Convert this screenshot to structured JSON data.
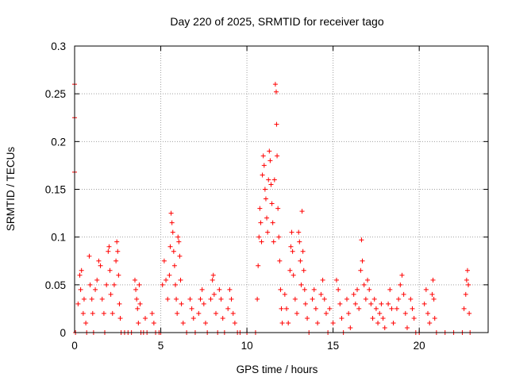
{
  "chart_data": {
    "type": "scatter",
    "title": "Day 220 of 2025, SRMTID for receiver tago",
    "xlabel": "GPS time / hours",
    "ylabel": "SRMTID / TECUs",
    "xlim": [
      0,
      24
    ],
    "ylim": [
      0,
      0.3
    ],
    "grid": true,
    "marker": "+",
    "color": "#ff0000",
    "xticks": [
      0,
      5,
      10,
      15,
      20
    ],
    "xtick_labels": [
      "0",
      "5",
      "10",
      "15",
      "20"
    ],
    "yticks": [
      0,
      0.05,
      0.1,
      0.15,
      0.2,
      0.25,
      0.3
    ],
    "ytick_labels": [
      "0",
      "0.05",
      "0.1",
      "0.15",
      "0.2",
      "0.25",
      "0.3"
    ],
    "series": [
      {
        "name": "SRMTID",
        "points": [
          [
            0.0,
            0.26
          ],
          [
            0.0,
            0.225
          ],
          [
            0.0,
            0.168
          ],
          [
            0.05,
            0.0
          ],
          [
            0.2,
            0.03
          ],
          [
            0.3,
            0.06
          ],
          [
            0.35,
            0.045
          ],
          [
            0.4,
            0.065
          ],
          [
            0.5,
            0.02
          ],
          [
            0.55,
            0.035
          ],
          [
            0.65,
            0.01
          ],
          [
            0.7,
            0.0
          ],
          [
            0.85,
            0.08
          ],
          [
            0.9,
            0.05
          ],
          [
            1.0,
            0.035
          ],
          [
            1.05,
            0.02
          ],
          [
            1.1,
            0.0
          ],
          [
            1.2,
            0.045
          ],
          [
            1.3,
            0.055
          ],
          [
            1.4,
            0.075
          ],
          [
            1.5,
            0.07
          ],
          [
            1.6,
            0.035
          ],
          [
            1.7,
            0.02
          ],
          [
            1.75,
            0.0
          ],
          [
            1.85,
            0.05
          ],
          [
            1.95,
            0.085
          ],
          [
            2.0,
            0.09
          ],
          [
            2.05,
            0.065
          ],
          [
            2.1,
            0.04
          ],
          [
            2.2,
            0.02
          ],
          [
            2.3,
            0.05
          ],
          [
            2.4,
            0.075
          ],
          [
            2.45,
            0.095
          ],
          [
            2.5,
            0.085
          ],
          [
            2.55,
            0.06
          ],
          [
            2.6,
            0.03
          ],
          [
            2.65,
            0.015
          ],
          [
            2.7,
            0.0
          ],
          [
            2.9,
            0.0
          ],
          [
            3.1,
            0.0
          ],
          [
            3.3,
            0.0
          ],
          [
            3.5,
            0.055
          ],
          [
            3.55,
            0.045
          ],
          [
            3.6,
            0.035
          ],
          [
            3.65,
            0.025
          ],
          [
            3.7,
            0.01
          ],
          [
            3.75,
            0.05
          ],
          [
            3.8,
            0.03
          ],
          [
            3.85,
            0.0
          ],
          [
            4.0,
            0.0
          ],
          [
            4.1,
            0.015
          ],
          [
            4.2,
            0.0
          ],
          [
            4.5,
            0.02
          ],
          [
            4.6,
            0.01
          ],
          [
            4.7,
            0.0
          ],
          [
            4.9,
            0.0
          ],
          [
            5.0,
            0.0
          ],
          [
            5.1,
            0.05
          ],
          [
            5.2,
            0.075
          ],
          [
            5.3,
            0.055
          ],
          [
            5.4,
            0.035
          ],
          [
            5.5,
            0.06
          ],
          [
            5.55,
            0.09
          ],
          [
            5.6,
            0.125
          ],
          [
            5.65,
            0.115
          ],
          [
            5.7,
            0.105
          ],
          [
            5.75,
            0.085
          ],
          [
            5.8,
            0.07
          ],
          [
            5.85,
            0.05
          ],
          [
            5.9,
            0.035
          ],
          [
            5.95,
            0.02
          ],
          [
            6.0,
            0.1
          ],
          [
            6.05,
            0.095
          ],
          [
            6.1,
            0.08
          ],
          [
            6.15,
            0.055
          ],
          [
            6.2,
            0.03
          ],
          [
            6.3,
            0.01
          ],
          [
            6.5,
            0.0
          ],
          [
            6.7,
            0.035
          ],
          [
            6.8,
            0.025
          ],
          [
            6.9,
            0.015
          ],
          [
            7.0,
            0.0
          ],
          [
            7.2,
            0.02
          ],
          [
            7.3,
            0.035
          ],
          [
            7.4,
            0.045
          ],
          [
            7.5,
            0.03
          ],
          [
            7.6,
            0.01
          ],
          [
            7.7,
            0.0
          ],
          [
            7.9,
            0.035
          ],
          [
            8.0,
            0.055
          ],
          [
            8.05,
            0.06
          ],
          [
            8.1,
            0.04
          ],
          [
            8.2,
            0.02
          ],
          [
            8.3,
            0.0
          ],
          [
            8.4,
            0.045
          ],
          [
            8.5,
            0.035
          ],
          [
            8.6,
            0.015
          ],
          [
            8.7,
            0.0
          ],
          [
            8.9,
            0.025
          ],
          [
            9.0,
            0.045
          ],
          [
            9.1,
            0.035
          ],
          [
            9.2,
            0.02
          ],
          [
            9.3,
            0.01
          ],
          [
            9.45,
            0.0
          ],
          [
            9.6,
            0.0
          ],
          [
            10.0,
            0.0
          ],
          [
            10.5,
            0.0
          ],
          [
            10.6,
            0.035
          ],
          [
            10.65,
            0.07
          ],
          [
            10.7,
            0.1
          ],
          [
            10.75,
            0.13
          ],
          [
            10.8,
            0.115
          ],
          [
            10.85,
            0.095
          ],
          [
            10.9,
            0.165
          ],
          [
            10.95,
            0.185
          ],
          [
            11.0,
            0.175
          ],
          [
            11.05,
            0.15
          ],
          [
            11.1,
            0.14
          ],
          [
            11.15,
            0.12
          ],
          [
            11.2,
            0.105
          ],
          [
            11.25,
            0.16
          ],
          [
            11.3,
            0.19
          ],
          [
            11.35,
            0.18
          ],
          [
            11.4,
            0.155
          ],
          [
            11.45,
            0.135
          ],
          [
            11.5,
            0.115
          ],
          [
            11.55,
            0.095
          ],
          [
            11.6,
            0.16
          ],
          [
            11.65,
            0.26
          ],
          [
            11.7,
            0.252
          ],
          [
            11.72,
            0.218
          ],
          [
            11.75,
            0.185
          ],
          [
            11.8,
            0.13
          ],
          [
            11.85,
            0.1
          ],
          [
            11.9,
            0.075
          ],
          [
            11.95,
            0.045
          ],
          [
            12.0,
            0.025
          ],
          [
            12.05,
            0.01
          ],
          [
            12.2,
            0.04
          ],
          [
            12.3,
            0.025
          ],
          [
            12.4,
            0.01
          ],
          [
            12.5,
            0.065
          ],
          [
            12.55,
            0.09
          ],
          [
            12.6,
            0.105
          ],
          [
            12.65,
            0.085
          ],
          [
            12.7,
            0.06
          ],
          [
            12.8,
            0.035
          ],
          [
            12.9,
            0.02
          ],
          [
            13.0,
            0.105
          ],
          [
            13.05,
            0.095
          ],
          [
            13.1,
            0.075
          ],
          [
            13.15,
            0.05
          ],
          [
            13.2,
            0.127
          ],
          [
            13.25,
            0.085
          ],
          [
            13.3,
            0.065
          ],
          [
            13.35,
            0.045
          ],
          [
            13.4,
            0.03
          ],
          [
            13.5,
            0.015
          ],
          [
            13.6,
            0.0
          ],
          [
            13.8,
            0.035
          ],
          [
            13.9,
            0.045
          ],
          [
            14.0,
            0.025
          ],
          [
            14.1,
            0.01
          ],
          [
            14.3,
            0.04
          ],
          [
            14.4,
            0.055
          ],
          [
            14.5,
            0.035
          ],
          [
            14.6,
            0.02
          ],
          [
            14.7,
            0.0
          ],
          [
            14.8,
            0.025
          ],
          [
            15.0,
            0.01
          ],
          [
            15.2,
            0.055
          ],
          [
            15.3,
            0.045
          ],
          [
            15.4,
            0.03
          ],
          [
            15.5,
            0.015
          ],
          [
            15.6,
            0.0
          ],
          [
            15.8,
            0.035
          ],
          [
            15.9,
            0.02
          ],
          [
            16.0,
            0.005
          ],
          [
            16.2,
            0.04
          ],
          [
            16.3,
            0.03
          ],
          [
            16.4,
            0.045
          ],
          [
            16.5,
            0.025
          ],
          [
            16.6,
            0.065
          ],
          [
            16.65,
            0.097
          ],
          [
            16.7,
            0.075
          ],
          [
            16.8,
            0.05
          ],
          [
            16.9,
            0.035
          ],
          [
            17.0,
            0.055
          ],
          [
            17.1,
            0.045
          ],
          [
            17.2,
            0.03
          ],
          [
            17.3,
            0.015
          ],
          [
            17.4,
            0.035
          ],
          [
            17.5,
            0.025
          ],
          [
            17.6,
            0.01
          ],
          [
            17.7,
            0.02
          ],
          [
            17.8,
            0.03
          ],
          [
            17.9,
            0.015
          ],
          [
            18.0,
            0.005
          ],
          [
            18.2,
            0.03
          ],
          [
            18.3,
            0.045
          ],
          [
            18.4,
            0.025
          ],
          [
            18.5,
            0.01
          ],
          [
            18.7,
            0.025
          ],
          [
            18.8,
            0.035
          ],
          [
            18.9,
            0.05
          ],
          [
            19.0,
            0.06
          ],
          [
            19.1,
            0.04
          ],
          [
            19.2,
            0.02
          ],
          [
            19.3,
            0.005
          ],
          [
            19.5,
            0.035
          ],
          [
            19.6,
            0.025
          ],
          [
            19.7,
            0.015
          ],
          [
            19.8,
            0.0
          ],
          [
            20.0,
            0.0
          ],
          [
            20.3,
            0.03
          ],
          [
            20.4,
            0.045
          ],
          [
            20.5,
            0.02
          ],
          [
            20.6,
            0.01
          ],
          [
            20.75,
            0.04
          ],
          [
            20.8,
            0.055
          ],
          [
            20.85,
            0.035
          ],
          [
            20.9,
            0.015
          ],
          [
            21.0,
            0.0
          ],
          [
            21.5,
            0.0
          ],
          [
            22.0,
            0.0
          ],
          [
            22.5,
            0.0
          ],
          [
            22.6,
            0.025
          ],
          [
            22.7,
            0.04
          ],
          [
            22.75,
            0.055
          ],
          [
            22.8,
            0.065
          ],
          [
            22.85,
            0.05
          ],
          [
            22.9,
            0.02
          ],
          [
            22.95,
            0.0
          ]
        ]
      }
    ]
  }
}
